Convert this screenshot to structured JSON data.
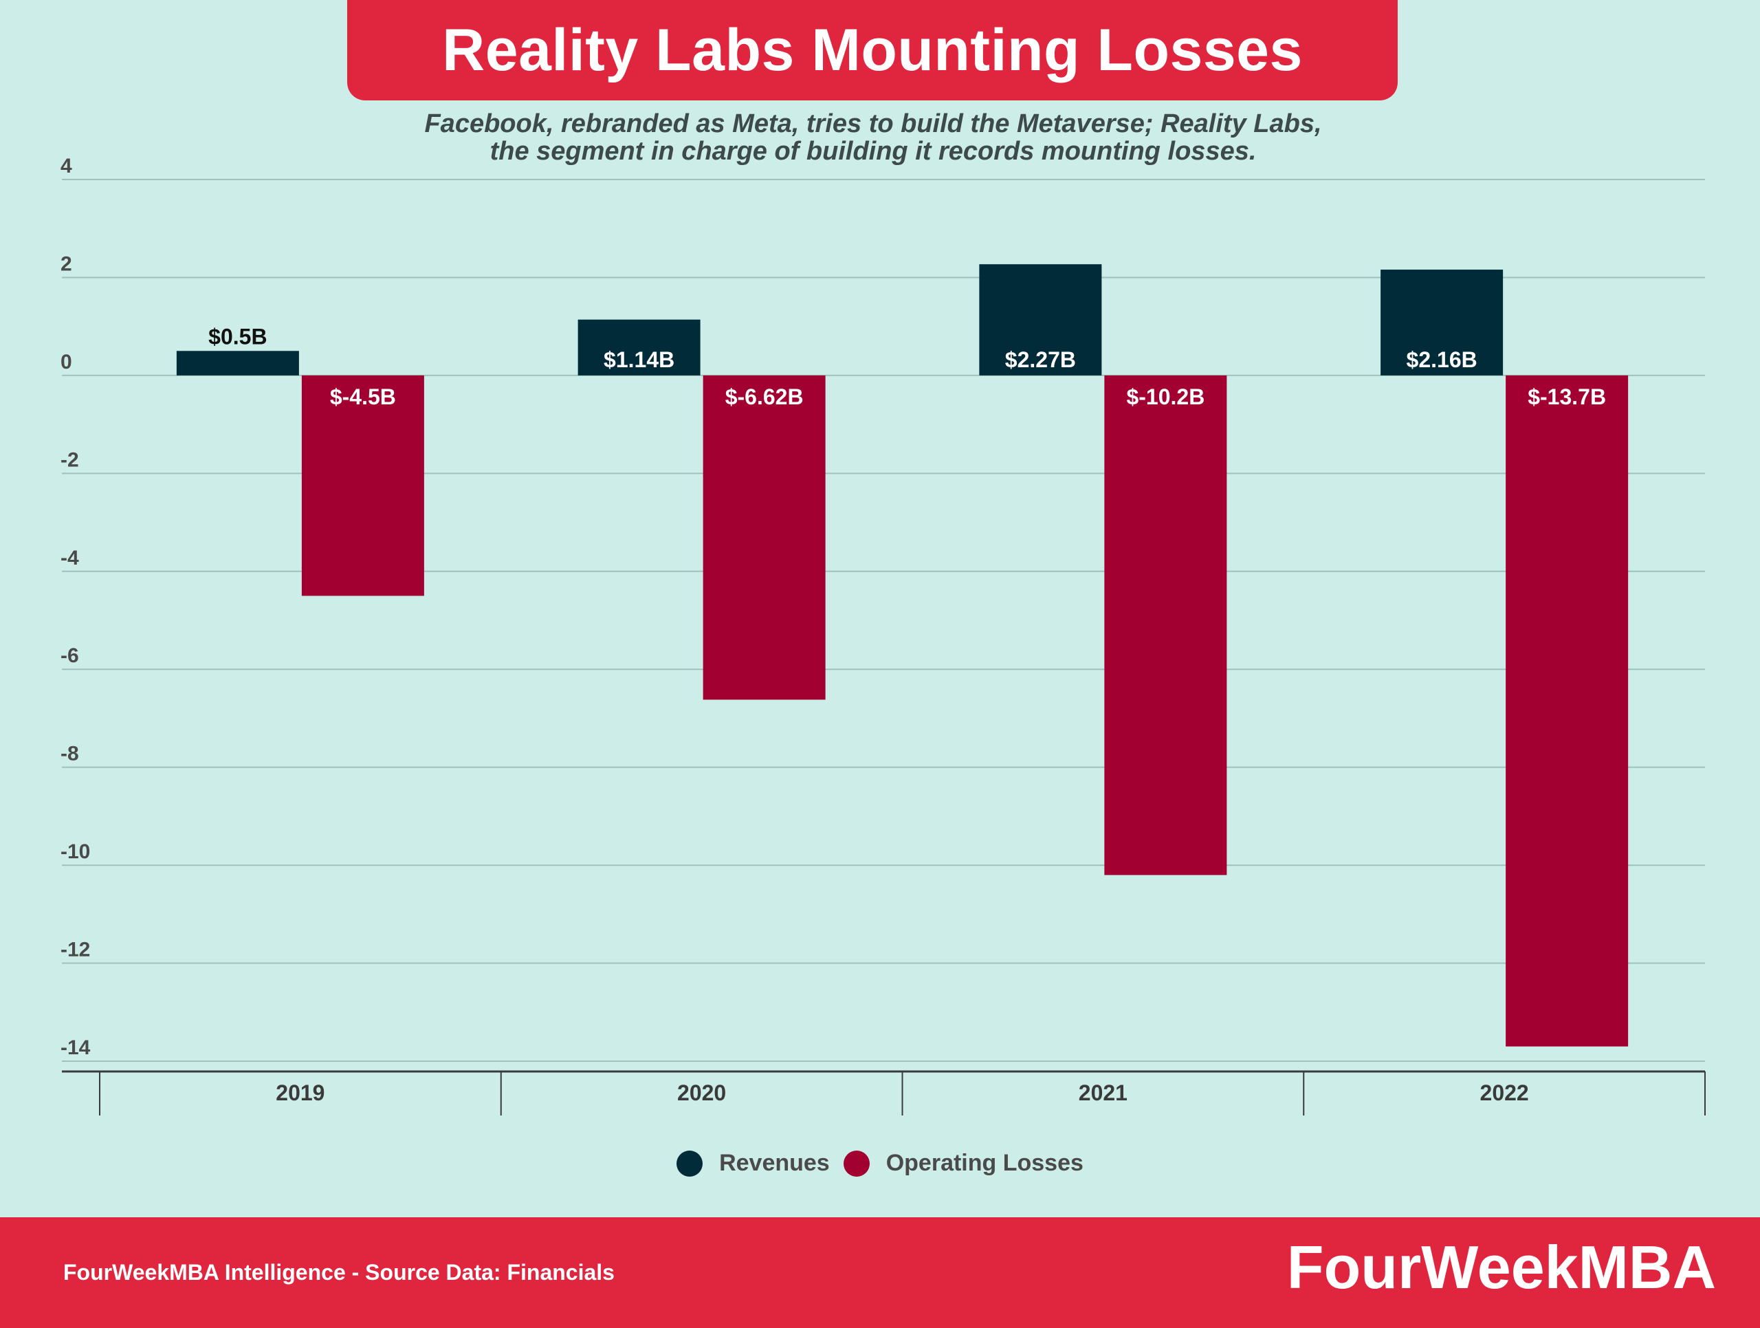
{
  "header": {
    "title": "Reality Labs Mounting Losses",
    "subtitle_line1": "Facebook, rebranded as Meta, tries to build the Metaverse; Reality Labs,",
    "subtitle_line2": "the segment in charge of building it records mounting losses."
  },
  "chart_data": {
    "type": "bar",
    "categories": [
      "2019",
      "2020",
      "2021",
      "2022"
    ],
    "series": [
      {
        "name": "Revenues",
        "values": [
          0.5,
          1.14,
          2.27,
          2.16
        ],
        "labels": [
          "$0.5B",
          "$1.14B",
          "$2.27B",
          "$2.16B"
        ],
        "color": "#022b3a"
      },
      {
        "name": "Operating Losses",
        "values": [
          -4.5,
          -6.62,
          -10.2,
          -13.7
        ],
        "labels": [
          "$-4.5B",
          "$-6.62B",
          "$-10.2B",
          "$-13.7B"
        ],
        "color": "#a30032"
      }
    ],
    "ylim": [
      -14,
      4
    ],
    "yticks": [
      4,
      2,
      0,
      -2,
      -4,
      -6,
      -8,
      -10,
      -12,
      -14
    ],
    "grid": true,
    "legend": "bottom-center"
  },
  "legend": {
    "revenues_label": "Revenues",
    "losses_label": "Operating Losses"
  },
  "footer": {
    "note": "FourWeekMBA Intelligence - Source Data: Financials",
    "brand": "FourWeekMBA"
  },
  "colors": {
    "banner": "#e0263e",
    "background": "#cdede8",
    "revenues": "#022b3a",
    "losses": "#a30032"
  }
}
